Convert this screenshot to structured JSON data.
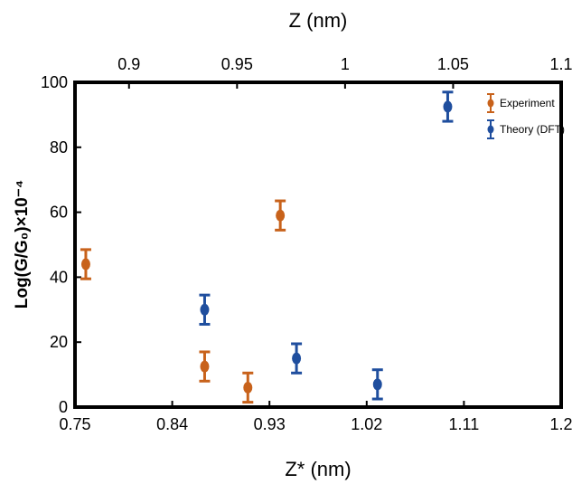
{
  "chart_data": {
    "type": "scatter",
    "xlabel": "Z* (nm)",
    "top_xlabel": "Z (nm)",
    "ylabel": "Log(G/G₀)×10⁻⁴",
    "xlim": [
      0.75,
      1.2
    ],
    "top_xlim": [
      0.875,
      1.1
    ],
    "ylim": [
      0,
      100
    ],
    "x_ticks": [
      "0.75",
      "0.84",
      "0.93",
      "1.02",
      "1.11",
      "1.2"
    ],
    "top_x_ticks": [
      "0.9",
      "0.95",
      "1",
      "1.05",
      "1.1"
    ],
    "y_ticks": [
      "0",
      "20",
      "40",
      "60",
      "80",
      "100"
    ],
    "grid": false,
    "legend_position": "top-right",
    "series": [
      {
        "name": "Experiment",
        "color": "#C8621B",
        "points": [
          {
            "x": 0.76,
            "y": 44,
            "err": 4.5
          },
          {
            "x": 0.87,
            "y": 12.5,
            "err": 4.5
          },
          {
            "x": 0.91,
            "y": 6,
            "err": 4.5
          },
          {
            "x": 0.94,
            "y": 59,
            "err": 4.5
          }
        ]
      },
      {
        "name": "Theory (DFT)",
        "color": "#1F4E9E",
        "points": [
          {
            "x": 0.87,
            "y": 30,
            "err": 4.5
          },
          {
            "x": 0.955,
            "y": 15,
            "err": 4.5
          },
          {
            "x": 1.03,
            "y": 7,
            "err": 4.5
          },
          {
            "x": 1.095,
            "y": 92.5,
            "err": 4.5
          }
        ]
      }
    ]
  }
}
